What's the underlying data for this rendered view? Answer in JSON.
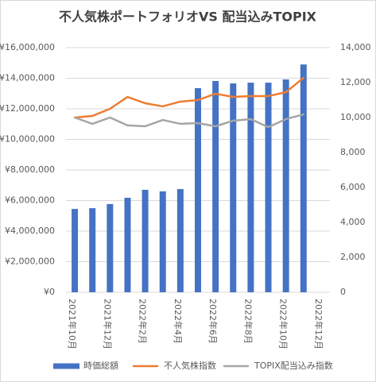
{
  "chart_data": {
    "type": "bar",
    "title": "不人気株ポートフォリオVS 配当込みTOPIX",
    "categories": [
      "2021年10月",
      null,
      "2021年12月",
      null,
      "2022年2月",
      null,
      "2022年4月",
      null,
      "2022年6月",
      null,
      "2022年8月",
      null,
      "2022年10月",
      null,
      "2022年12月"
    ],
    "series": [
      {
        "name": "時価総額",
        "type": "bar",
        "color": "#4472c4",
        "axis": "y",
        "values": [
          5450000,
          5500000,
          5770000,
          6180000,
          6700000,
          6600000,
          6750000,
          13350000,
          13820000,
          13660000,
          13710000,
          13710000,
          13920000,
          14900000,
          null
        ]
      },
      {
        "name": "不人気株指数",
        "type": "line",
        "color": "#ed7d31",
        "axis": "y2",
        "values": [
          10000,
          10090,
          10500,
          11180,
          10820,
          10640,
          10910,
          11000,
          11360,
          11180,
          11230,
          11230,
          11450,
          12270,
          null
        ]
      },
      {
        "name": "TOPIX配当込み指数",
        "type": "line",
        "color": "#a5a5a5",
        "axis": "y2",
        "values": [
          10000,
          9640,
          10000,
          9550,
          9500,
          9860,
          9640,
          9680,
          9500,
          9820,
          9910,
          9450,
          9910,
          10180,
          null
        ]
      }
    ],
    "ylim": [
      0,
      16000000
    ],
    "yticks": [
      {
        "value": 0,
        "label": "¥0"
      },
      {
        "value": 2000000,
        "label": "¥2,000,000"
      },
      {
        "value": 4000000,
        "label": "¥4,000,000"
      },
      {
        "value": 6000000,
        "label": "¥6,000,000"
      },
      {
        "value": 8000000,
        "label": "¥8,000,000"
      },
      {
        "value": 10000000,
        "label": "¥10,000,000"
      },
      {
        "value": 12000000,
        "label": "¥12,000,000"
      },
      {
        "value": 14000000,
        "label": "¥14,000,000"
      },
      {
        "value": 16000000,
        "label": "¥16,000,000"
      }
    ],
    "y2lim": [
      0,
      14000
    ],
    "y2ticks": [
      0,
      {
        "value": 2000,
        "label": "2,000"
      },
      {
        "value": 4000,
        "label": "4,000"
      },
      {
        "value": 6000,
        "label": "6,000"
      },
      {
        "value": 8000,
        "label": "8,000"
      },
      {
        "value": 10000,
        "label": "10,000"
      },
      {
        "value": 12000,
        "label": "12,000"
      },
      {
        "value": 14000,
        "label": "14,000"
      }
    ],
    "grid": true,
    "legend": "bottom"
  }
}
